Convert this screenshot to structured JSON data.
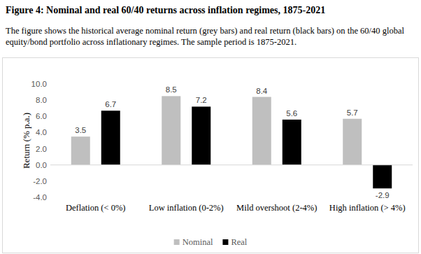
{
  "chart_data": {
    "type": "bar",
    "title": "Figure 4: Nominal and real 60/40 returns across inflation regimes, 1875-2021",
    "subtitle": "The figure shows the historical average nominal return (grey bars) and real return (black bars) on the 60/40 global equity/bond portfolio across inflationary regimes. The sample period is 1875-2021.",
    "y_label": "Return (% p.a.)",
    "categories": [
      "Deflation (< 0%)",
      "Low inflation (0-2%)",
      "Mild overshoot (2-4%)",
      "High inflation (> 4%)"
    ],
    "series": [
      {
        "name": "Nominal",
        "color": "#bfbfbf",
        "values": [
          3.5,
          8.5,
          8.4,
          5.7
        ]
      },
      {
        "name": "Real",
        "color": "#000000",
        "values": [
          6.7,
          7.2,
          5.6,
          -2.9
        ]
      }
    ],
    "ylim": [
      -4,
      10
    ],
    "yticks": [
      {
        "value": -4,
        "label": "-4.0"
      },
      {
        "value": -2,
        "label": "-2.0"
      },
      {
        "value": 0,
        "label": "0.0"
      },
      {
        "value": 2,
        "label": "2.0"
      },
      {
        "value": 4,
        "label": "4.0"
      },
      {
        "value": 6,
        "label": "6.0"
      },
      {
        "value": 8,
        "label": "8.0"
      },
      {
        "value": 10,
        "label": "10.0"
      }
    ],
    "grid": false,
    "data_labels": true,
    "legend": "bottom"
  }
}
